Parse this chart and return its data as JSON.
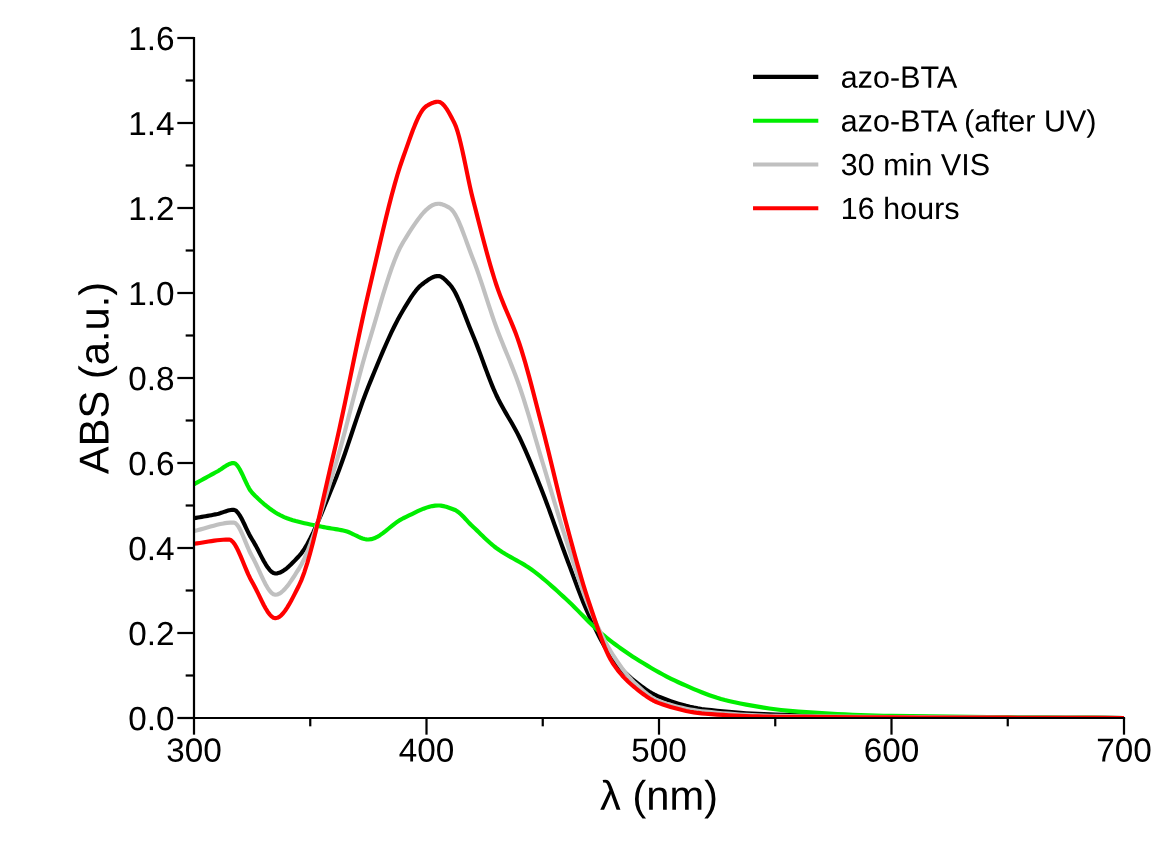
{
  "chart_data": {
    "type": "line",
    "xlabel": "λ (nm)",
    "ylabel": "ABS (a.u.)",
    "xlim": [
      300,
      700
    ],
    "ylim": [
      0,
      1.6
    ],
    "xticks": [
      300,
      {
        "value": 350,
        "label": null
      },
      400,
      {
        "value": 450,
        "label": null
      },
      500,
      {
        "value": 550,
        "label": null
      },
      600,
      {
        "value": 650,
        "label": null
      },
      700
    ],
    "yticks": [
      {
        "value": 0,
        "label": "0.0"
      },
      {
        "value": 0.1,
        "label": null
      },
      {
        "value": 0.2,
        "label": "0.2"
      },
      {
        "value": 0.3,
        "label": null
      },
      {
        "value": 0.4,
        "label": "0.4"
      },
      {
        "value": 0.5,
        "label": null
      },
      {
        "value": 0.6,
        "label": "0.6"
      },
      {
        "value": 0.7,
        "label": null
      },
      {
        "value": 0.8,
        "label": "0.8"
      },
      {
        "value": 0.9,
        "label": null
      },
      {
        "value": 1.0,
        "label": "1.0"
      },
      {
        "value": 1.1,
        "label": null
      },
      {
        "value": 1.2,
        "label": "1.2"
      },
      {
        "value": 1.3,
        "label": null
      },
      {
        "value": 1.4,
        "label": "1.4"
      },
      {
        "value": 1.5,
        "label": null
      },
      {
        "value": 1.6,
        "label": "1.6"
      }
    ],
    "grid": false,
    "legend": "top right",
    "marker": "none",
    "line_style": "solid",
    "series": [
      {
        "name": "azo-BTA",
        "color": "#000000",
        "x": [
          300,
          310,
          317,
          325,
          335,
          345,
          360,
          375,
          390,
          398,
          405,
          410,
          420,
          430,
          440,
          450,
          460,
          470,
          480,
          490,
          500,
          520,
          550,
          600,
          700
        ],
        "values": [
          0.47,
          0.48,
          0.49,
          0.42,
          0.34,
          0.38,
          0.55,
          0.78,
          0.96,
          1.02,
          1.04,
          1.02,
          0.9,
          0.76,
          0.66,
          0.53,
          0.38,
          0.24,
          0.14,
          0.085,
          0.05,
          0.02,
          0.008,
          0.003,
          0
        ]
      },
      {
        "name": "azo-BTA (after UV)",
        "color": "#00ee00",
        "x": [
          300,
          310,
          317,
          325,
          340,
          355,
          365,
          375,
          390,
          405,
          412,
          420,
          430,
          445,
          460,
          475,
          490,
          510,
          530,
          560,
          600,
          700
        ],
        "values": [
          0.55,
          0.58,
          0.6,
          0.53,
          0.47,
          0.45,
          0.44,
          0.42,
          0.47,
          0.5,
          0.49,
          0.45,
          0.4,
          0.35,
          0.28,
          0.2,
          0.14,
          0.08,
          0.04,
          0.015,
          0.005,
          0
        ]
      },
      {
        "name": "30 min VIS",
        "color": "#c0c0c0",
        "x": [
          300,
          317,
          325,
          335,
          345,
          360,
          375,
          390,
          405,
          410,
          420,
          430,
          440,
          450,
          460,
          470,
          480,
          490,
          500,
          520,
          550,
          700
        ],
        "values": [
          0.44,
          0.46,
          0.38,
          0.29,
          0.35,
          0.58,
          0.88,
          1.12,
          1.21,
          1.2,
          1.08,
          0.92,
          0.78,
          0.6,
          0.42,
          0.26,
          0.15,
          0.08,
          0.04,
          0.015,
          0.005,
          0
        ]
      },
      {
        "name": "16 hours",
        "color": "#ff0000",
        "x": [
          300,
          315,
          325,
          335,
          345,
          360,
          375,
          390,
          400,
          405,
          412,
          420,
          430,
          440,
          450,
          460,
          470,
          480,
          490,
          500,
          520,
          550,
          700
        ],
        "values": [
          0.41,
          0.42,
          0.32,
          0.235,
          0.31,
          0.62,
          1.0,
          1.32,
          1.44,
          1.45,
          1.4,
          1.22,
          1.02,
          0.88,
          0.68,
          0.46,
          0.27,
          0.13,
          0.07,
          0.035,
          0.01,
          0.003,
          0
        ]
      }
    ]
  }
}
